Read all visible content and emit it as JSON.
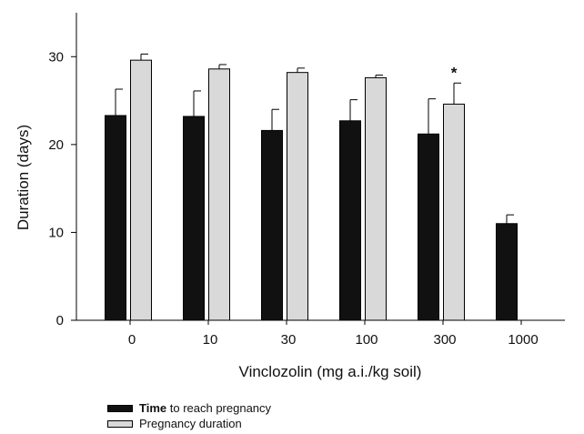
{
  "chart_data": {
    "type": "bar",
    "title": "",
    "xlabel": "Vinclozolin (mg a.i./kg soil)",
    "ylabel": "Duration (days)",
    "categories": [
      "0",
      "10",
      "30",
      "100",
      "300",
      "1000"
    ],
    "ylim": [
      0,
      35
    ],
    "yticks": [
      0,
      10,
      20,
      30
    ],
    "grid": false,
    "legend_position": "bottom-left",
    "series": [
      {
        "name": "Time to reach pregnancy",
        "name_bold_part": "Time",
        "name_rest": "to reach pregnancy",
        "color": "#111111",
        "values": [
          23.3,
          23.2,
          21.6,
          22.7,
          21.2,
          11.0
        ],
        "errors": [
          3.0,
          2.9,
          2.4,
          2.4,
          4.0,
          1.0
        ]
      },
      {
        "name": "Pregnancy duration",
        "color": "#d9d9d9",
        "values": [
          29.6,
          28.6,
          28.2,
          27.6,
          24.6,
          null
        ],
        "errors": [
          0.7,
          0.5,
          0.5,
          0.3,
          2.4,
          null
        ]
      }
    ],
    "annotations": [
      {
        "text": "*",
        "category": "300",
        "series": 1
      }
    ]
  }
}
